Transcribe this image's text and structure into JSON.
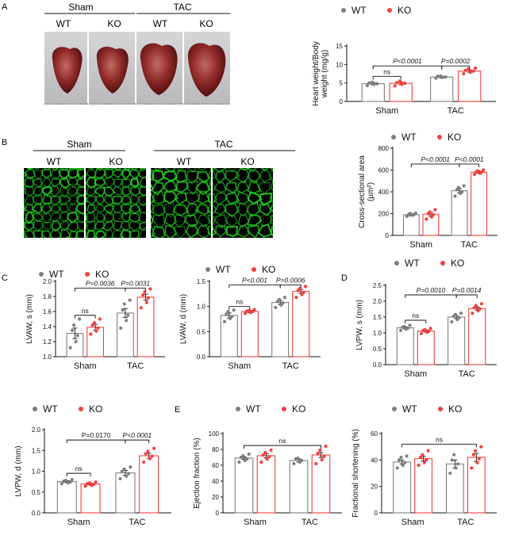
{
  "panels": {
    "A": {
      "letter": "A",
      "groups": [
        "Sham",
        "TAC"
      ],
      "genotypes": [
        "WT",
        "KO",
        "WT",
        "KO"
      ]
    },
    "B": {
      "letter": "B",
      "groups": [
        "Sham",
        "TAC"
      ],
      "genotypes": [
        "WT",
        "KO",
        "WT",
        "KO"
      ]
    },
    "C": {
      "letter": "C"
    },
    "D": {
      "letter": "D"
    },
    "E": {
      "letter": "E"
    }
  },
  "colors": {
    "wt": "#7f7f7f",
    "ko": "#f2403c",
    "micro_green": "#1fd41f",
    "heart_dark": "#6e1616",
    "heart_light": "#b85a56",
    "photo_bg": "#c9c9cb"
  },
  "chart_data": [
    {
      "id": "heart-weight",
      "type": "bar",
      "ylabel": "Heart weight/Body\nweight (mg/g)",
      "ylim": [
        0,
        15
      ],
      "yticks": [
        0,
        5,
        10,
        15
      ],
      "categories": [
        "Sham",
        "TAC"
      ],
      "legend": [
        "WT",
        "KO"
      ],
      "series": [
        {
          "name": "WT",
          "values": [
            4.8,
            6.6
          ],
          "err": [
            0.3,
            0.25
          ],
          "points": [
            [
              4.3,
              4.6,
              4.8,
              5.0,
              5.2
            ],
            [
              6.3,
              6.5,
              6.6,
              6.8,
              6.9
            ]
          ]
        },
        {
          "name": "KO",
          "values": [
            4.9,
            8.2
          ],
          "err": [
            0.35,
            0.3
          ],
          "points": [
            [
              4.2,
              4.6,
              4.9,
              5.1,
              5.5
            ],
            [
              7.5,
              7.9,
              8.2,
              8.4,
              8.8,
              9.0
            ]
          ]
        }
      ],
      "annotations": [
        {
          "text": "ns",
          "from": [
            0,
            0
          ],
          "to": [
            0,
            1
          ],
          "y": 6.8,
          "italic": false
        },
        {
          "text": "P<0.0001",
          "from": [
            0,
            0
          ],
          "to": [
            1,
            0
          ],
          "y": 9.6,
          "italic": true
        },
        {
          "text": "P=0.0002",
          "from": [
            1,
            0
          ],
          "to": [
            1,
            1
          ],
          "y": 9.6,
          "italic": true
        }
      ]
    },
    {
      "id": "cross-sectional-area",
      "type": "bar",
      "ylabel": "Cross-sectional area\n(µm²)",
      "ylim": [
        0,
        800
      ],
      "yticks": [
        0,
        200,
        400,
        600,
        800
      ],
      "categories": [
        "Sham",
        "TAC"
      ],
      "legend": [
        "WT",
        "KO"
      ],
      "series": [
        {
          "name": "WT",
          "values": [
            190,
            410
          ],
          "err": [
            10,
            20
          ],
          "points": [
            [
              175,
              185,
              190,
              195,
              200,
              205
            ],
            [
              360,
              385,
              400,
              420,
              440,
              455
            ]
          ]
        },
        {
          "name": "KO",
          "values": [
            195,
            580
          ],
          "err": [
            18,
            10
          ],
          "points": [
            [
              150,
              170,
              190,
              200,
              215,
              235
            ],
            [
              560,
              570,
              578,
              585,
              592,
              600
            ]
          ]
        }
      ],
      "annotations": [
        {
          "text": "P<0.0001",
          "from": [
            0,
            0
          ],
          "to": [
            1,
            0
          ],
          "y": 655,
          "italic": true
        },
        {
          "text": "P<0.0001",
          "from": [
            1,
            0
          ],
          "to": [
            1,
            1
          ],
          "y": 655,
          "italic": true
        }
      ]
    },
    {
      "id": "lvaw-s",
      "type": "bar",
      "ylabel": "LVAW, s (mm)",
      "ylim": [
        1.0,
        2.0
      ],
      "yticks": [
        1.0,
        1.2,
        1.4,
        1.6,
        1.8,
        2.0
      ],
      "categories": [
        "Sham",
        "TAC"
      ],
      "legend": [
        "WT",
        "KO"
      ],
      "series": [
        {
          "name": "WT",
          "values": [
            1.31,
            1.58
          ],
          "err": [
            0.07,
            0.06
          ],
          "points": [
            [
              1.12,
              1.2,
              1.28,
              1.35,
              1.42,
              1.5
            ],
            [
              1.38,
              1.48,
              1.55,
              1.62,
              1.7,
              1.75
            ]
          ]
        },
        {
          "name": "KO",
          "values": [
            1.39,
            1.79
          ],
          "err": [
            0.04,
            0.04
          ],
          "points": [
            [
              1.3,
              1.34,
              1.38,
              1.42,
              1.45,
              1.5
            ],
            [
              1.65,
              1.72,
              1.78,
              1.82,
              1.86,
              1.9
            ]
          ]
        }
      ],
      "annotations": [
        {
          "text": "ns",
          "from": [
            0,
            0
          ],
          "to": [
            0,
            1
          ],
          "y": 1.55,
          "italic": false
        },
        {
          "text": "P=0.0036",
          "from": [
            0,
            0
          ],
          "to": [
            1,
            0
          ],
          "y": 1.91,
          "italic": true
        },
        {
          "text": "P=0.0031",
          "from": [
            1,
            0
          ],
          "to": [
            1,
            1
          ],
          "y": 1.91,
          "italic": true
        }
      ]
    },
    {
      "id": "lvaw-d",
      "type": "bar",
      "ylabel": "LVAW, d (mm)",
      "ylim": [
        0.0,
        1.5
      ],
      "yticks": [
        0.0,
        0.5,
        1.0,
        1.5
      ],
      "categories": [
        "Sham",
        "TAC"
      ],
      "legend": [
        "WT",
        "KO"
      ],
      "series": [
        {
          "name": "WT",
          "values": [
            0.82,
            1.08
          ],
          "err": [
            0.05,
            0.04
          ],
          "points": [
            [
              0.7,
              0.76,
              0.8,
              0.85,
              0.9,
              0.93
            ],
            [
              0.98,
              1.03,
              1.07,
              1.1,
              1.14,
              1.18
            ]
          ]
        },
        {
          "name": "KO",
          "values": [
            0.9,
            1.3
          ],
          "err": [
            0.02,
            0.04
          ],
          "points": [
            [
              0.86,
              0.88,
              0.9,
              0.91,
              0.92,
              0.94
            ],
            [
              1.18,
              1.24,
              1.28,
              1.32,
              1.36,
              1.4
            ]
          ]
        }
      ],
      "annotations": [
        {
          "text": "ns",
          "from": [
            0,
            0
          ],
          "to": [
            0,
            1
          ],
          "y": 1.0,
          "italic": false
        },
        {
          "text": "P<0.001",
          "from": [
            0,
            0
          ],
          "to": [
            1,
            0
          ],
          "y": 1.43,
          "italic": true
        },
        {
          "text": "P=0.0006",
          "from": [
            1,
            0
          ],
          "to": [
            1,
            1
          ],
          "y": 1.43,
          "italic": true
        }
      ]
    },
    {
      "id": "lvpw-s",
      "type": "bar",
      "ylabel": "LVPW, s (mm)",
      "ylim": [
        0.0,
        2.5
      ],
      "yticks": [
        0.0,
        0.5,
        1.0,
        1.5,
        2.0,
        2.5
      ],
      "categories": [
        "Sham",
        "TAC"
      ],
      "legend": [
        "WT",
        "KO"
      ],
      "series": [
        {
          "name": "WT",
          "values": [
            1.16,
            1.5
          ],
          "err": [
            0.03,
            0.05
          ],
          "points": [
            [
              1.08,
              1.12,
              1.15,
              1.18,
              1.2,
              1.24
            ],
            [
              1.35,
              1.42,
              1.48,
              1.53,
              1.58,
              1.62
            ]
          ]
        },
        {
          "name": "KO",
          "values": [
            1.06,
            1.77
          ],
          "err": [
            0.03,
            0.05
          ],
          "points": [
            [
              0.98,
              1.02,
              1.05,
              1.08,
              1.1,
              1.14
            ],
            [
              1.62,
              1.7,
              1.76,
              1.8,
              1.86,
              1.92
            ]
          ]
        }
      ],
      "annotations": [
        {
          "text": "ns",
          "from": [
            0,
            0
          ],
          "to": [
            0,
            1
          ],
          "y": 1.4,
          "italic": false
        },
        {
          "text": "P=0.0010",
          "from": [
            0,
            0
          ],
          "to": [
            1,
            0
          ],
          "y": 2.2,
          "italic": true
        },
        {
          "text": "P=0.0014",
          "from": [
            1,
            0
          ],
          "to": [
            1,
            1
          ],
          "y": 2.2,
          "italic": true
        }
      ]
    },
    {
      "id": "lvpw-d",
      "type": "bar",
      "ylabel": "LVPW, d (mm)",
      "ylim": [
        0.0,
        2.0
      ],
      "yticks": [
        0.0,
        0.5,
        1.0,
        1.5,
        2.0
      ],
      "categories": [
        "Sham",
        "TAC"
      ],
      "legend": [
        "WT",
        "KO"
      ],
      "series": [
        {
          "name": "WT",
          "values": [
            0.75,
            0.96
          ],
          "err": [
            0.02,
            0.06
          ],
          "points": [
            [
              0.7,
              0.72,
              0.74,
              0.76,
              0.78,
              0.8
            ],
            [
              0.82,
              0.88,
              0.94,
              1.0,
              1.05,
              1.1
            ]
          ]
        },
        {
          "name": "KO",
          "values": [
            0.69,
            1.37
          ],
          "err": [
            0.02,
            0.06
          ],
          "points": [
            [
              0.64,
              0.66,
              0.68,
              0.7,
              0.72,
              0.74
            ],
            [
              1.22,
              1.3,
              1.36,
              1.42,
              1.48,
              1.55
            ]
          ]
        }
      ],
      "annotations": [
        {
          "text": "ns",
          "from": [
            0,
            0
          ],
          "to": [
            0,
            1
          ],
          "y": 0.95,
          "italic": false
        },
        {
          "text": "P=0.0170",
          "from": [
            0,
            0
          ],
          "to": [
            1,
            0
          ],
          "y": 1.75,
          "italic": false
        },
        {
          "text": "P<0.0001",
          "from": [
            1,
            0
          ],
          "to": [
            1,
            1
          ],
          "y": 1.75,
          "italic": true
        }
      ]
    },
    {
      "id": "ejection-fraction",
      "type": "bar",
      "ylabel": "Ejection fraction (%)",
      "ylim": [
        0,
        100
      ],
      "yticks": [
        0,
        20,
        40,
        60,
        80,
        100
      ],
      "categories": [
        "Sham",
        "TAC"
      ],
      "legend": [
        "WT",
        "KO"
      ],
      "series": [
        {
          "name": "WT",
          "values": [
            69,
            66
          ],
          "err": [
            1.5,
            2
          ],
          "points": [
            [
              64,
              66,
              68,
              70,
              72,
              74
            ],
            [
              62,
              64,
              66,
              68,
              69
            ]
          ]
        },
        {
          "name": "KO",
          "values": [
            72,
            73
          ],
          "err": [
            2.5,
            3
          ],
          "points": [
            [
              64,
              68,
              71,
              73,
              76,
              79
            ],
            [
              62,
              67,
              71,
              75,
              79,
              84
            ]
          ]
        }
      ],
      "annotations": [
        {
          "text": "ns",
          "from": [
            0,
            0
          ],
          "to": [
            1,
            1
          ],
          "y": 85,
          "italic": false
        }
      ]
    },
    {
      "id": "fractional-shortening",
      "type": "bar",
      "ylabel": "Fractional shortening (%)",
      "ylim": [
        0,
        60
      ],
      "yticks": [
        0,
        20,
        40,
        60
      ],
      "categories": [
        "Sham",
        "TAC"
      ],
      "legend": [
        "WT",
        "KO"
      ],
      "series": [
        {
          "name": "WT",
          "values": [
            38.5,
            37
          ],
          "err": [
            1.5,
            3
          ],
          "points": [
            [
              34,
              36,
              38,
              40,
              42,
              43
            ],
            [
              30,
              34,
              37,
              40,
              44
            ]
          ]
        },
        {
          "name": "KO",
          "values": [
            41,
            42
          ],
          "err": [
            1.8,
            3
          ],
          "points": [
            [
              36,
              38,
              40,
              42,
              44,
              47
            ],
            [
              34,
              38,
              41,
              44,
              47,
              50
            ]
          ]
        }
      ],
      "annotations": [
        {
          "text": "ns",
          "from": [
            0,
            0
          ],
          "to": [
            1,
            1
          ],
          "y": 52,
          "italic": false
        }
      ]
    }
  ]
}
